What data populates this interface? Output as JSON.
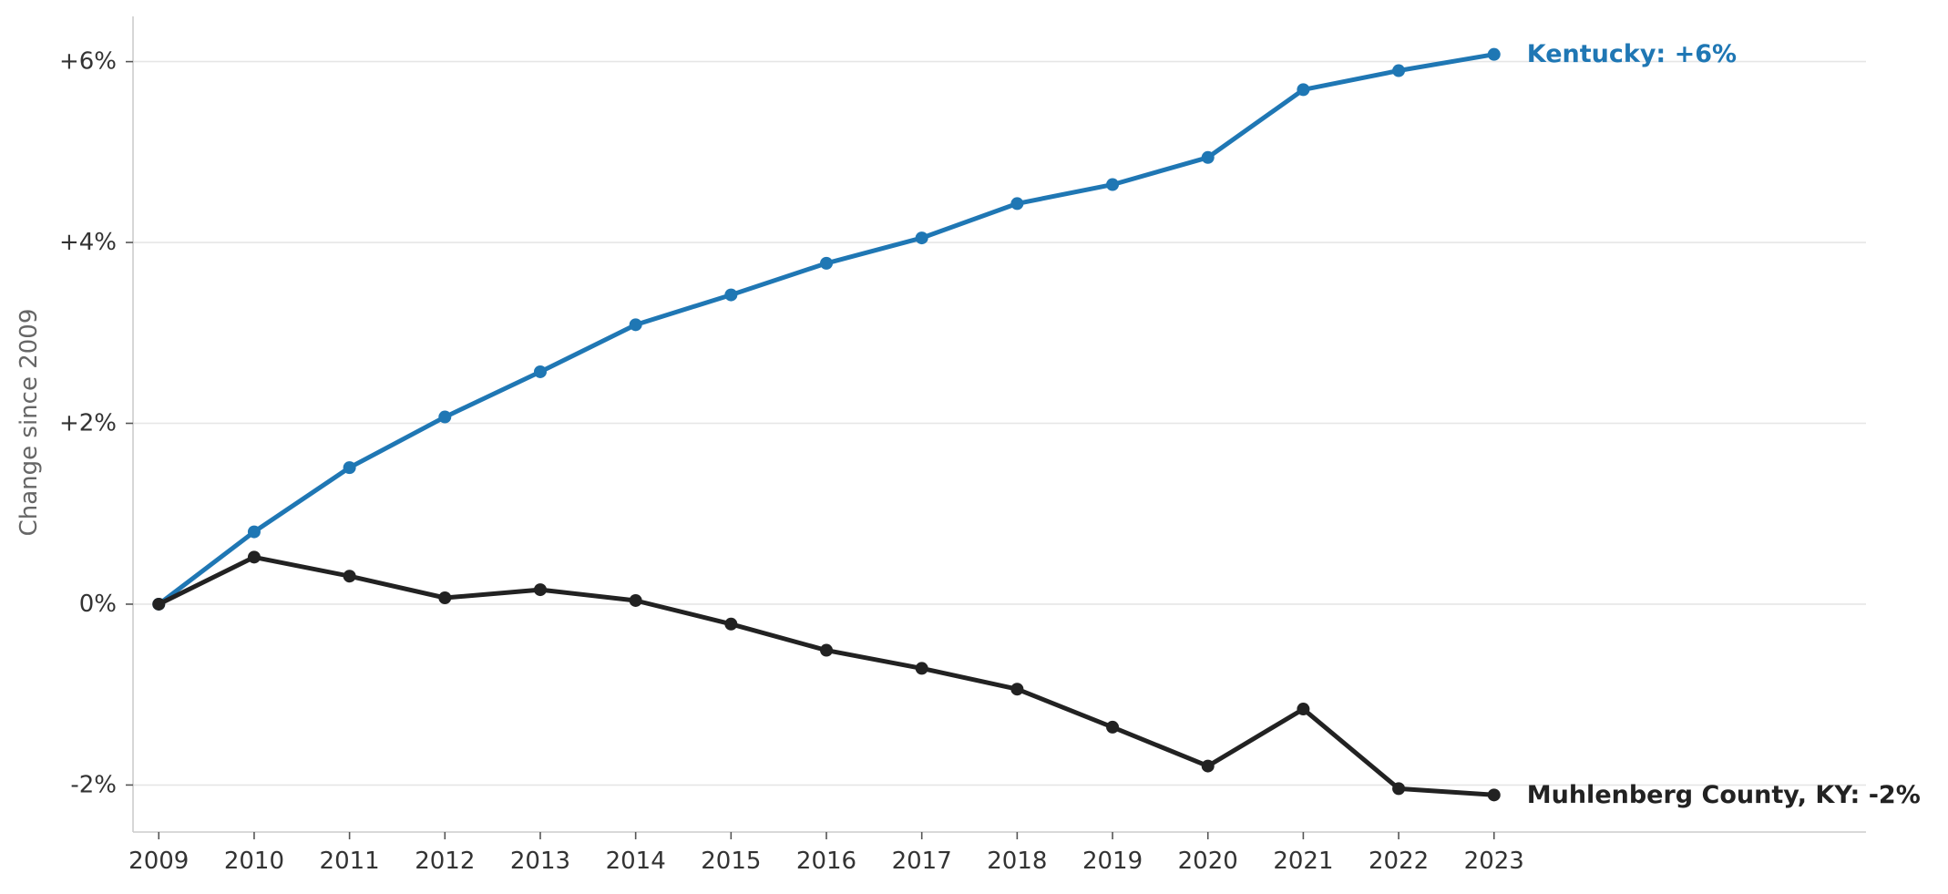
{
  "chart_data": {
    "type": "line",
    "title": "",
    "xlabel": "",
    "ylabel": "Change since 2009",
    "x": [
      2009,
      2010,
      2011,
      2012,
      2013,
      2014,
      2015,
      2016,
      2017,
      2018,
      2019,
      2020,
      2021,
      2022,
      2023
    ],
    "xticks": [
      "2009",
      "2010",
      "2011",
      "2012",
      "2013",
      "2014",
      "2015",
      "2016",
      "2017",
      "2018",
      "2019",
      "2020",
      "2021",
      "2022",
      "2023"
    ],
    "yticks": [
      {
        "value": -2,
        "label": "-2%"
      },
      {
        "value": 0,
        "label": "0%"
      },
      {
        "value": 2,
        "label": "+2%"
      },
      {
        "value": 4,
        "label": "+4%"
      },
      {
        "value": 6,
        "label": "+6%"
      }
    ],
    "xlim": [
      2008.73,
      2026.9
    ],
    "ylim": [
      -2.52,
      6.5
    ],
    "grid": "horizontal",
    "legend": "none",
    "series": [
      {
        "label": "Kentucky: +6%",
        "color": "#1f77b4",
        "values": [
          0,
          0.8,
          1.51,
          2.07,
          2.57,
          3.09,
          3.42,
          3.77,
          4.05,
          4.43,
          4.64,
          4.94,
          5.69,
          5.9,
          6.08
        ]
      },
      {
        "label": "Muhlenberg County, KY: -2%",
        "color": "#222222",
        "values": [
          0,
          0.52,
          0.31,
          0.07,
          0.16,
          0.04,
          -0.22,
          -0.51,
          -0.71,
          -0.94,
          -1.36,
          -1.79,
          -1.16,
          -2.04,
          -2.11
        ]
      }
    ]
  }
}
